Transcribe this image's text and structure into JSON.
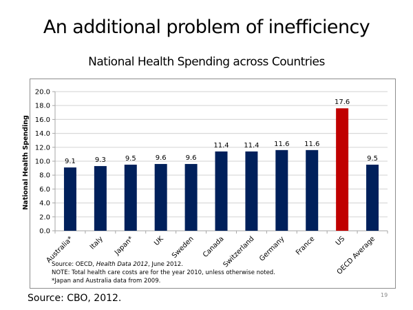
{
  "slide": {
    "title": "An additional problem of inefficiency",
    "footer_source": "Source: CBO, 2012.",
    "page_number": "19"
  },
  "chart_data": {
    "type": "bar",
    "title": "National Health Spending across Countries",
    "xlabel": "",
    "ylabel": "National Health Spending",
    "ylim": [
      0,
      20
    ],
    "yticks": [
      "0.0",
      "2.0",
      "4.0",
      "6.0",
      "8.0",
      "10.0",
      "12.0",
      "14.0",
      "16.0",
      "18.0",
      "20.0"
    ],
    "grid": true,
    "categories": [
      "Australia*",
      "Italy",
      "Japan*",
      "UK",
      "Sweden",
      "Canada",
      "Switzerland",
      "Germany",
      "France",
      "US",
      "OECD Average"
    ],
    "values": [
      9.1,
      9.3,
      9.5,
      9.6,
      9.6,
      11.4,
      11.4,
      11.6,
      11.6,
      17.6,
      9.5
    ],
    "value_labels": [
      "9.1",
      "9.3",
      "9.5",
      "9.6",
      "9.6",
      "11.4",
      "11.4",
      "11.6",
      "11.6",
      "17.6",
      "9.5"
    ],
    "colors": {
      "default": "#00205b",
      "highlight": "#c00000",
      "highlight_category": "US",
      "grid": "#d9d9d9"
    },
    "notes": {
      "source_prefix": "Source: OECD, ",
      "source_italic": "Health Data 2012",
      "source_suffix": ", June 2012.",
      "note": "NOTE: Total health care costs are for the year 2010, unless otherwise noted.",
      "footnote": "*Japan and Australia data from 2009."
    }
  }
}
